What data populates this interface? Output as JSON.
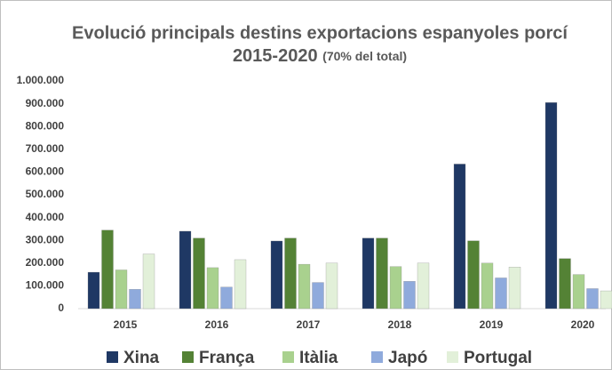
{
  "chart_data": {
    "type": "bar",
    "title": [
      "Evolució principals destins exportacions  espanyoles porcí",
      "2015-2020"
    ],
    "subtitle": "(70% del total)",
    "categories": [
      "2015",
      "2016",
      "2017",
      "2018",
      "2019",
      "2020"
    ],
    "series": [
      {
        "name": "Xina",
        "color": "#1f3864",
        "values": [
          160000,
          340000,
          297000,
          310000,
          635000,
          905000
        ]
      },
      {
        "name": "França",
        "color": "#548235",
        "values": [
          345000,
          310000,
          310000,
          310000,
          298000,
          220000
        ]
      },
      {
        "name": "Itàlia",
        "color": "#a9d18e",
        "values": [
          170000,
          180000,
          195000,
          185000,
          200000,
          150000
        ]
      },
      {
        "name": "Japó",
        "color": "#8faadc",
        "values": [
          85000,
          95000,
          115000,
          120000,
          135000,
          88000
        ]
      },
      {
        "name": "Portugal",
        "color": "#e2f0d9",
        "values": [
          240000,
          215000,
          200000,
          200000,
          183000,
          78000
        ]
      }
    ],
    "ylim": [
      0,
      1000000
    ],
    "yticks": [
      0,
      {
        "value": 100000,
        "label": "100.000"
      },
      {
        "value": 200000,
        "label": "200.000"
      },
      {
        "value": 300000,
        "label": "300.000"
      },
      {
        "value": 400000,
        "label": "400.000"
      },
      {
        "value": 500000,
        "label": "500.000"
      },
      {
        "value": 600000,
        "label": "600.000"
      },
      {
        "value": 700000,
        "label": "700.000"
      },
      {
        "value": 800000,
        "label": "800.000"
      },
      {
        "value": 900000,
        "label": "900.000"
      },
      {
        "value": 1000000,
        "label": "1.000.000"
      }
    ],
    "grid": false,
    "legend": "bottom"
  }
}
